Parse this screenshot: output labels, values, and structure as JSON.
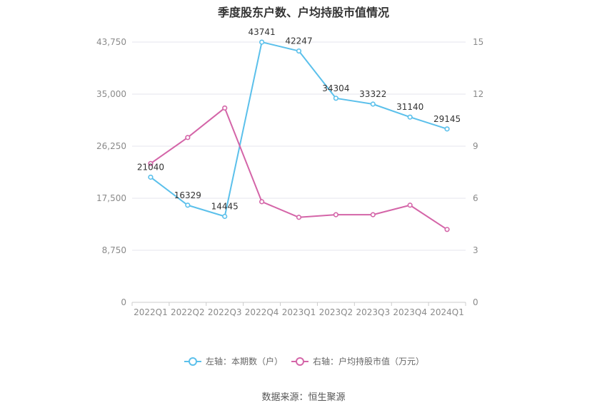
{
  "chart_data": {
    "type": "line",
    "title": "季度股东户数、户均持股市值情况",
    "categories": [
      "2022Q1",
      "2022Q2",
      "2022Q3",
      "2022Q4",
      "2023Q1",
      "2023Q2",
      "2023Q3",
      "2023Q4",
      "2024Q1"
    ],
    "series": [
      {
        "name": "左轴：本期数（户）",
        "axis": "left",
        "color": "#5bc0eb",
        "values": [
          21040,
          16329,
          14445,
          43741,
          42247,
          34304,
          33322,
          31140,
          29145
        ],
        "data_labels": [
          "21040",
          "16329",
          "14445",
          "43741",
          "42247",
          "34304",
          "33322",
          "31140",
          "29145"
        ]
      },
      {
        "name": "右轴：户均持股市值（万元）",
        "axis": "right",
        "color": "#d465a8",
        "values": [
          8.0,
          9.5,
          11.2,
          5.8,
          4.9,
          5.05,
          5.05,
          5.6,
          4.2
        ]
      }
    ],
    "y_left": {
      "range": [
        0,
        43750
      ],
      "ticks": [
        "0",
        "8,750",
        "17,500",
        "26,250",
        "35,000",
        "43,750"
      ],
      "tick_values": [
        0,
        8750,
        17500,
        26250,
        35000,
        43750
      ]
    },
    "y_right": {
      "range": [
        0,
        15
      ],
      "ticks": [
        "0",
        "3",
        "6",
        "9",
        "12",
        "15"
      ],
      "tick_values": [
        0,
        3,
        6,
        9,
        12,
        15
      ]
    },
    "grid": true,
    "legend_position": "bottom"
  },
  "footer": {
    "source": "数据来源：恒生聚源"
  }
}
